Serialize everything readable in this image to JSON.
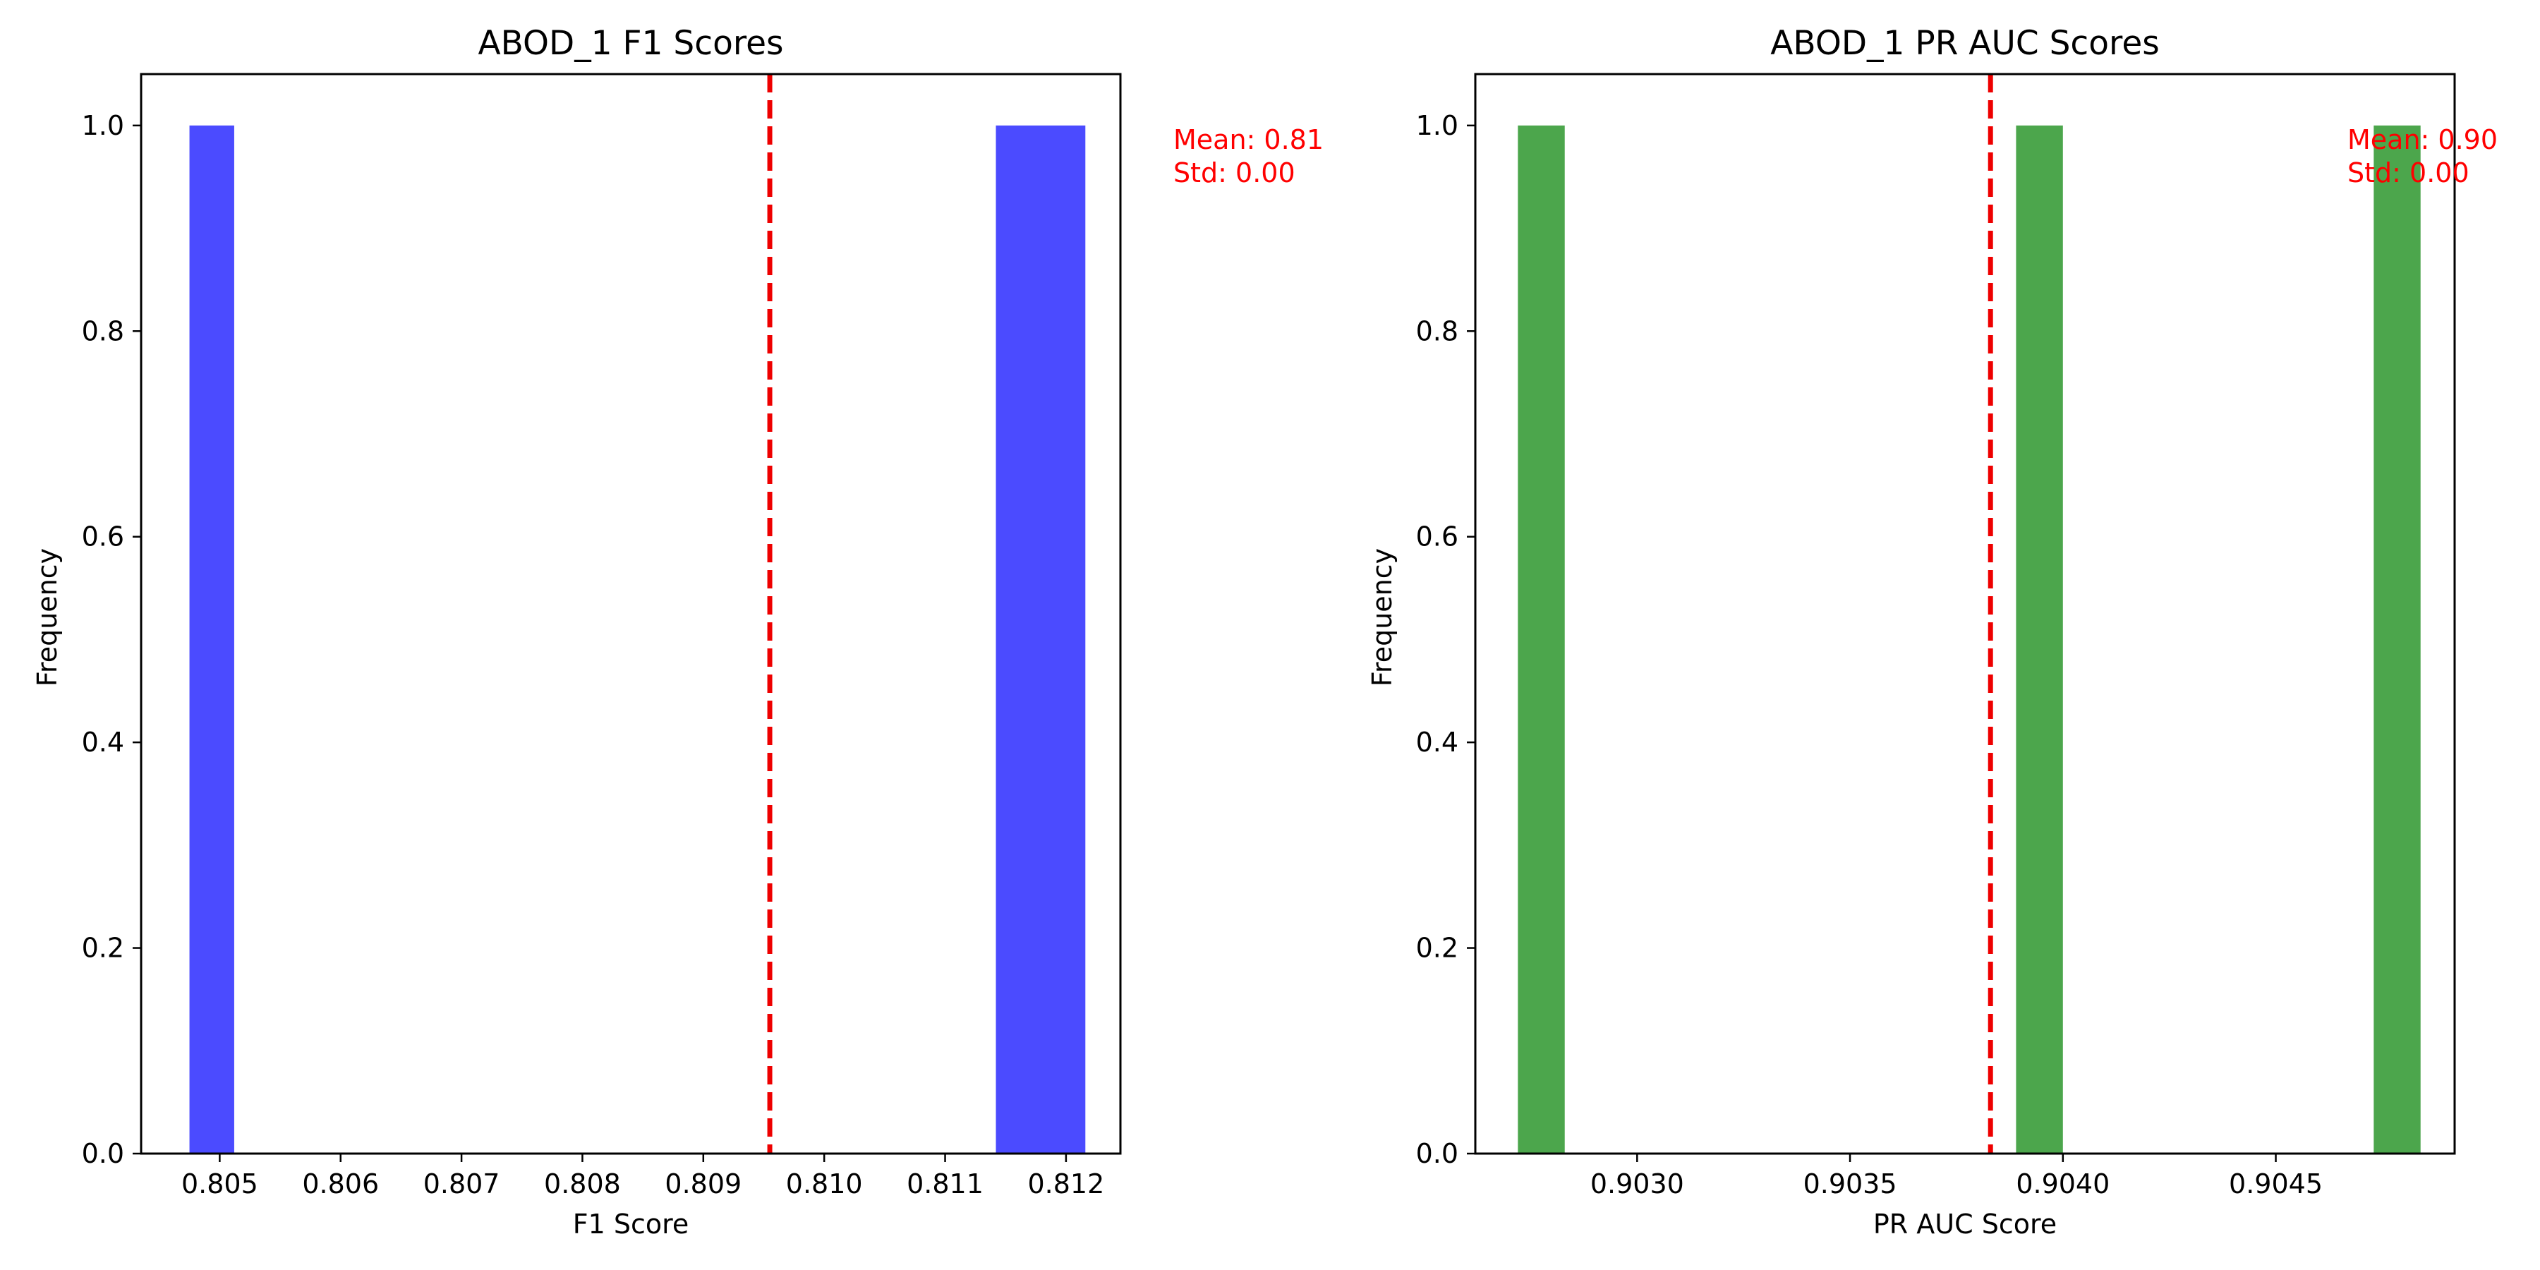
{
  "chart_data": [
    {
      "type": "bar",
      "title": "ABOD_1 F1 Scores",
      "xlabel": "F1 Score",
      "ylabel": "Frequency",
      "xlim": [
        0.80435,
        0.81245
      ],
      "ylim": [
        0,
        1.05
      ],
      "xticks": [
        0.805,
        0.806,
        0.807,
        0.808,
        0.809,
        0.81,
        0.811,
        0.812
      ],
      "xtick_labels": [
        "0.805",
        "0.806",
        "0.807",
        "0.808",
        "0.809",
        "0.810",
        "0.811",
        "0.812"
      ],
      "yticks": [
        0.0,
        0.2,
        0.4,
        0.6,
        0.8,
        1.0
      ],
      "ytick_labels": [
        "0.0",
        "0.2",
        "0.4",
        "0.6",
        "0.8",
        "1.0"
      ],
      "bar_color": "#4b4bff",
      "bars": [
        {
          "x0": 0.80475,
          "x1": 0.80512,
          "value": 1.0
        },
        {
          "x0": 0.81142,
          "x1": 0.81216,
          "value": 1.0
        }
      ],
      "mean_line": {
        "x": 0.80955,
        "color": "#ee0000"
      },
      "annotation": {
        "mean": "Mean: 0.81",
        "std": "Std: 0.00",
        "color": "#ff0000"
      },
      "grid": false
    },
    {
      "type": "bar",
      "title": "ABOD_1 PR AUC Scores",
      "xlabel": "PR AUC Score",
      "ylabel": "Frequency",
      "xlim": [
        0.90262,
        0.90492
      ],
      "ylim": [
        0,
        1.05
      ],
      "xticks": [
        0.903,
        0.9035,
        0.904,
        0.9045
      ],
      "xtick_labels": [
        "0.9030",
        "0.9035",
        "0.9040",
        "0.9045"
      ],
      "yticks": [
        0.0,
        0.2,
        0.4,
        0.6,
        0.8,
        1.0
      ],
      "ytick_labels": [
        "0.0",
        "0.2",
        "0.4",
        "0.6",
        "0.8",
        "1.0"
      ],
      "bar_color": "#4ca64c",
      "bars": [
        {
          "x0": 0.90272,
          "x1": 0.90283,
          "value": 1.0
        },
        {
          "x0": 0.90389,
          "x1": 0.904,
          "value": 1.0
        },
        {
          "x0": 0.90473,
          "x1": 0.90484,
          "value": 1.0
        }
      ],
      "mean_line": {
        "x": 0.90383,
        "color": "#ee0000"
      },
      "annotation": {
        "mean": "Mean: 0.90",
        "std": "Std: 0.00",
        "color": "#ff0000"
      },
      "grid": false
    }
  ]
}
